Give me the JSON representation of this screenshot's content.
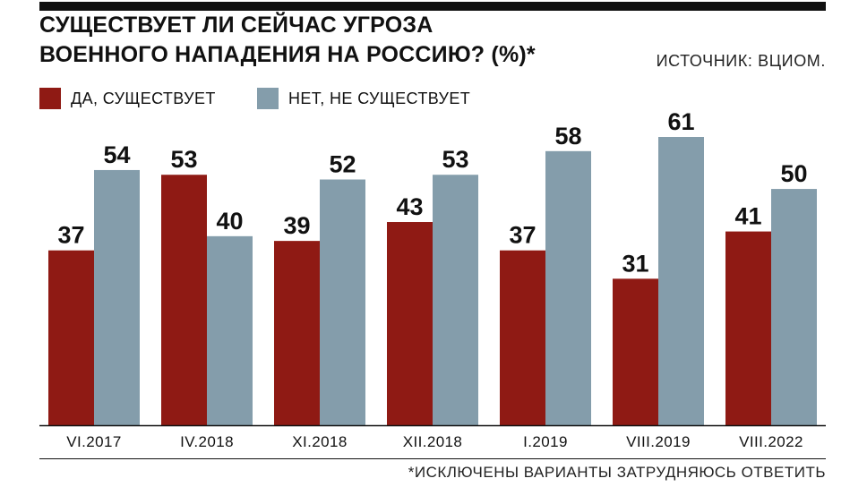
{
  "chart_data": {
    "type": "bar",
    "title": "СУЩЕСТВУЕТ ЛИ СЕЙЧАС УГРОЗА ВОЕННОГО НАПАДЕНИЯ НА РОССИЮ? (%)*",
    "title_lines": [
      "СУЩЕСТВУЕТ ЛИ СЕЙЧАС УГРОЗА",
      "ВОЕННОГО НАПАДЕНИЯ НА РОССИЮ? (%)*"
    ],
    "source": "ИСТОЧНИК: ВЦИОМ.",
    "footnote": "*ИСКЛЮЧЕНЫ ВАРИАНТЫ ЗАТРУДНЯЮСЬ ОТВЕТИТЬ",
    "categories": [
      "VI.2017",
      "IV.2018",
      "XI.2018",
      "XII.2018",
      "I.2019",
      "VIII.2019",
      "VIII.2022"
    ],
    "series": [
      {
        "name": "ДА, СУЩЕСТВУЕТ",
        "color": "#8f1a14",
        "values": [
          37,
          53,
          39,
          43,
          37,
          31,
          41
        ]
      },
      {
        "name": "НЕТ, НЕ СУЩЕСТВУЕТ",
        "color": "#849dab",
        "values": [
          54,
          40,
          52,
          53,
          58,
          61,
          50
        ]
      }
    ],
    "xlabel": "",
    "ylabel": "",
    "ylim": [
      0,
      61
    ],
    "grid": false,
    "legend": "top-left",
    "data_labels": true
  }
}
